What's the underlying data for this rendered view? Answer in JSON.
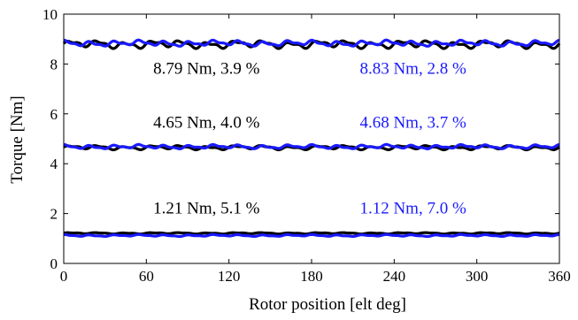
{
  "chart_data": {
    "type": "line",
    "title": "",
    "xlabel": "Rotor position [elt deg]",
    "ylabel": "Torque [Nm]",
    "xlim": [
      0,
      360
    ],
    "ylim": [
      0,
      10
    ],
    "xticks": [
      0,
      60,
      120,
      180,
      240,
      300,
      360
    ],
    "yticks": [
      0,
      2,
      4,
      6,
      8,
      10
    ],
    "grid": false,
    "legend": "none",
    "colors": {
      "black": "#000000",
      "blue": "#1a1aff"
    },
    "series": [
      {
        "group": "high",
        "color": "black",
        "mean": 8.79,
        "ripple_pct": 3.9,
        "label": "8.79 Nm, 3.9 %"
      },
      {
        "group": "high",
        "color": "blue",
        "mean": 8.83,
        "ripple_pct": 2.8,
        "label": "8.83 Nm, 2.8 %"
      },
      {
        "group": "mid",
        "color": "black",
        "mean": 4.65,
        "ripple_pct": 4.0,
        "label": "4.65 Nm, 4.0 %"
      },
      {
        "group": "mid",
        "color": "blue",
        "mean": 4.68,
        "ripple_pct": 3.7,
        "label": "4.68 Nm, 3.7 %"
      },
      {
        "group": "low",
        "color": "black",
        "mean": 1.21,
        "ripple_pct": 5.1,
        "label": "1.21 Nm, 5.1 %"
      },
      {
        "group": "low",
        "color": "blue",
        "mean": 1.12,
        "ripple_pct": 7.0,
        "label": "1.12 Nm, 7.0 %"
      }
    ],
    "annotations": [
      {
        "text": "8.79 Nm, 3.9 %",
        "color": "black",
        "x": 65,
        "y": 7.6
      },
      {
        "text": "8.83 Nm, 2.8 %",
        "color": "blue",
        "x": 215,
        "y": 7.6
      },
      {
        "text": "4.65 Nm, 4.0 %",
        "color": "black",
        "x": 65,
        "y": 5.45
      },
      {
        "text": "4.68 Nm, 3.7 %",
        "color": "blue",
        "x": 215,
        "y": 5.45
      },
      {
        "text": "1.21 Nm, 5.1 %",
        "color": "black",
        "x": 65,
        "y": 2.0
      },
      {
        "text": "1.12 Nm, 7.0 %",
        "color": "blue",
        "x": 215,
        "y": 2.0
      }
    ]
  }
}
